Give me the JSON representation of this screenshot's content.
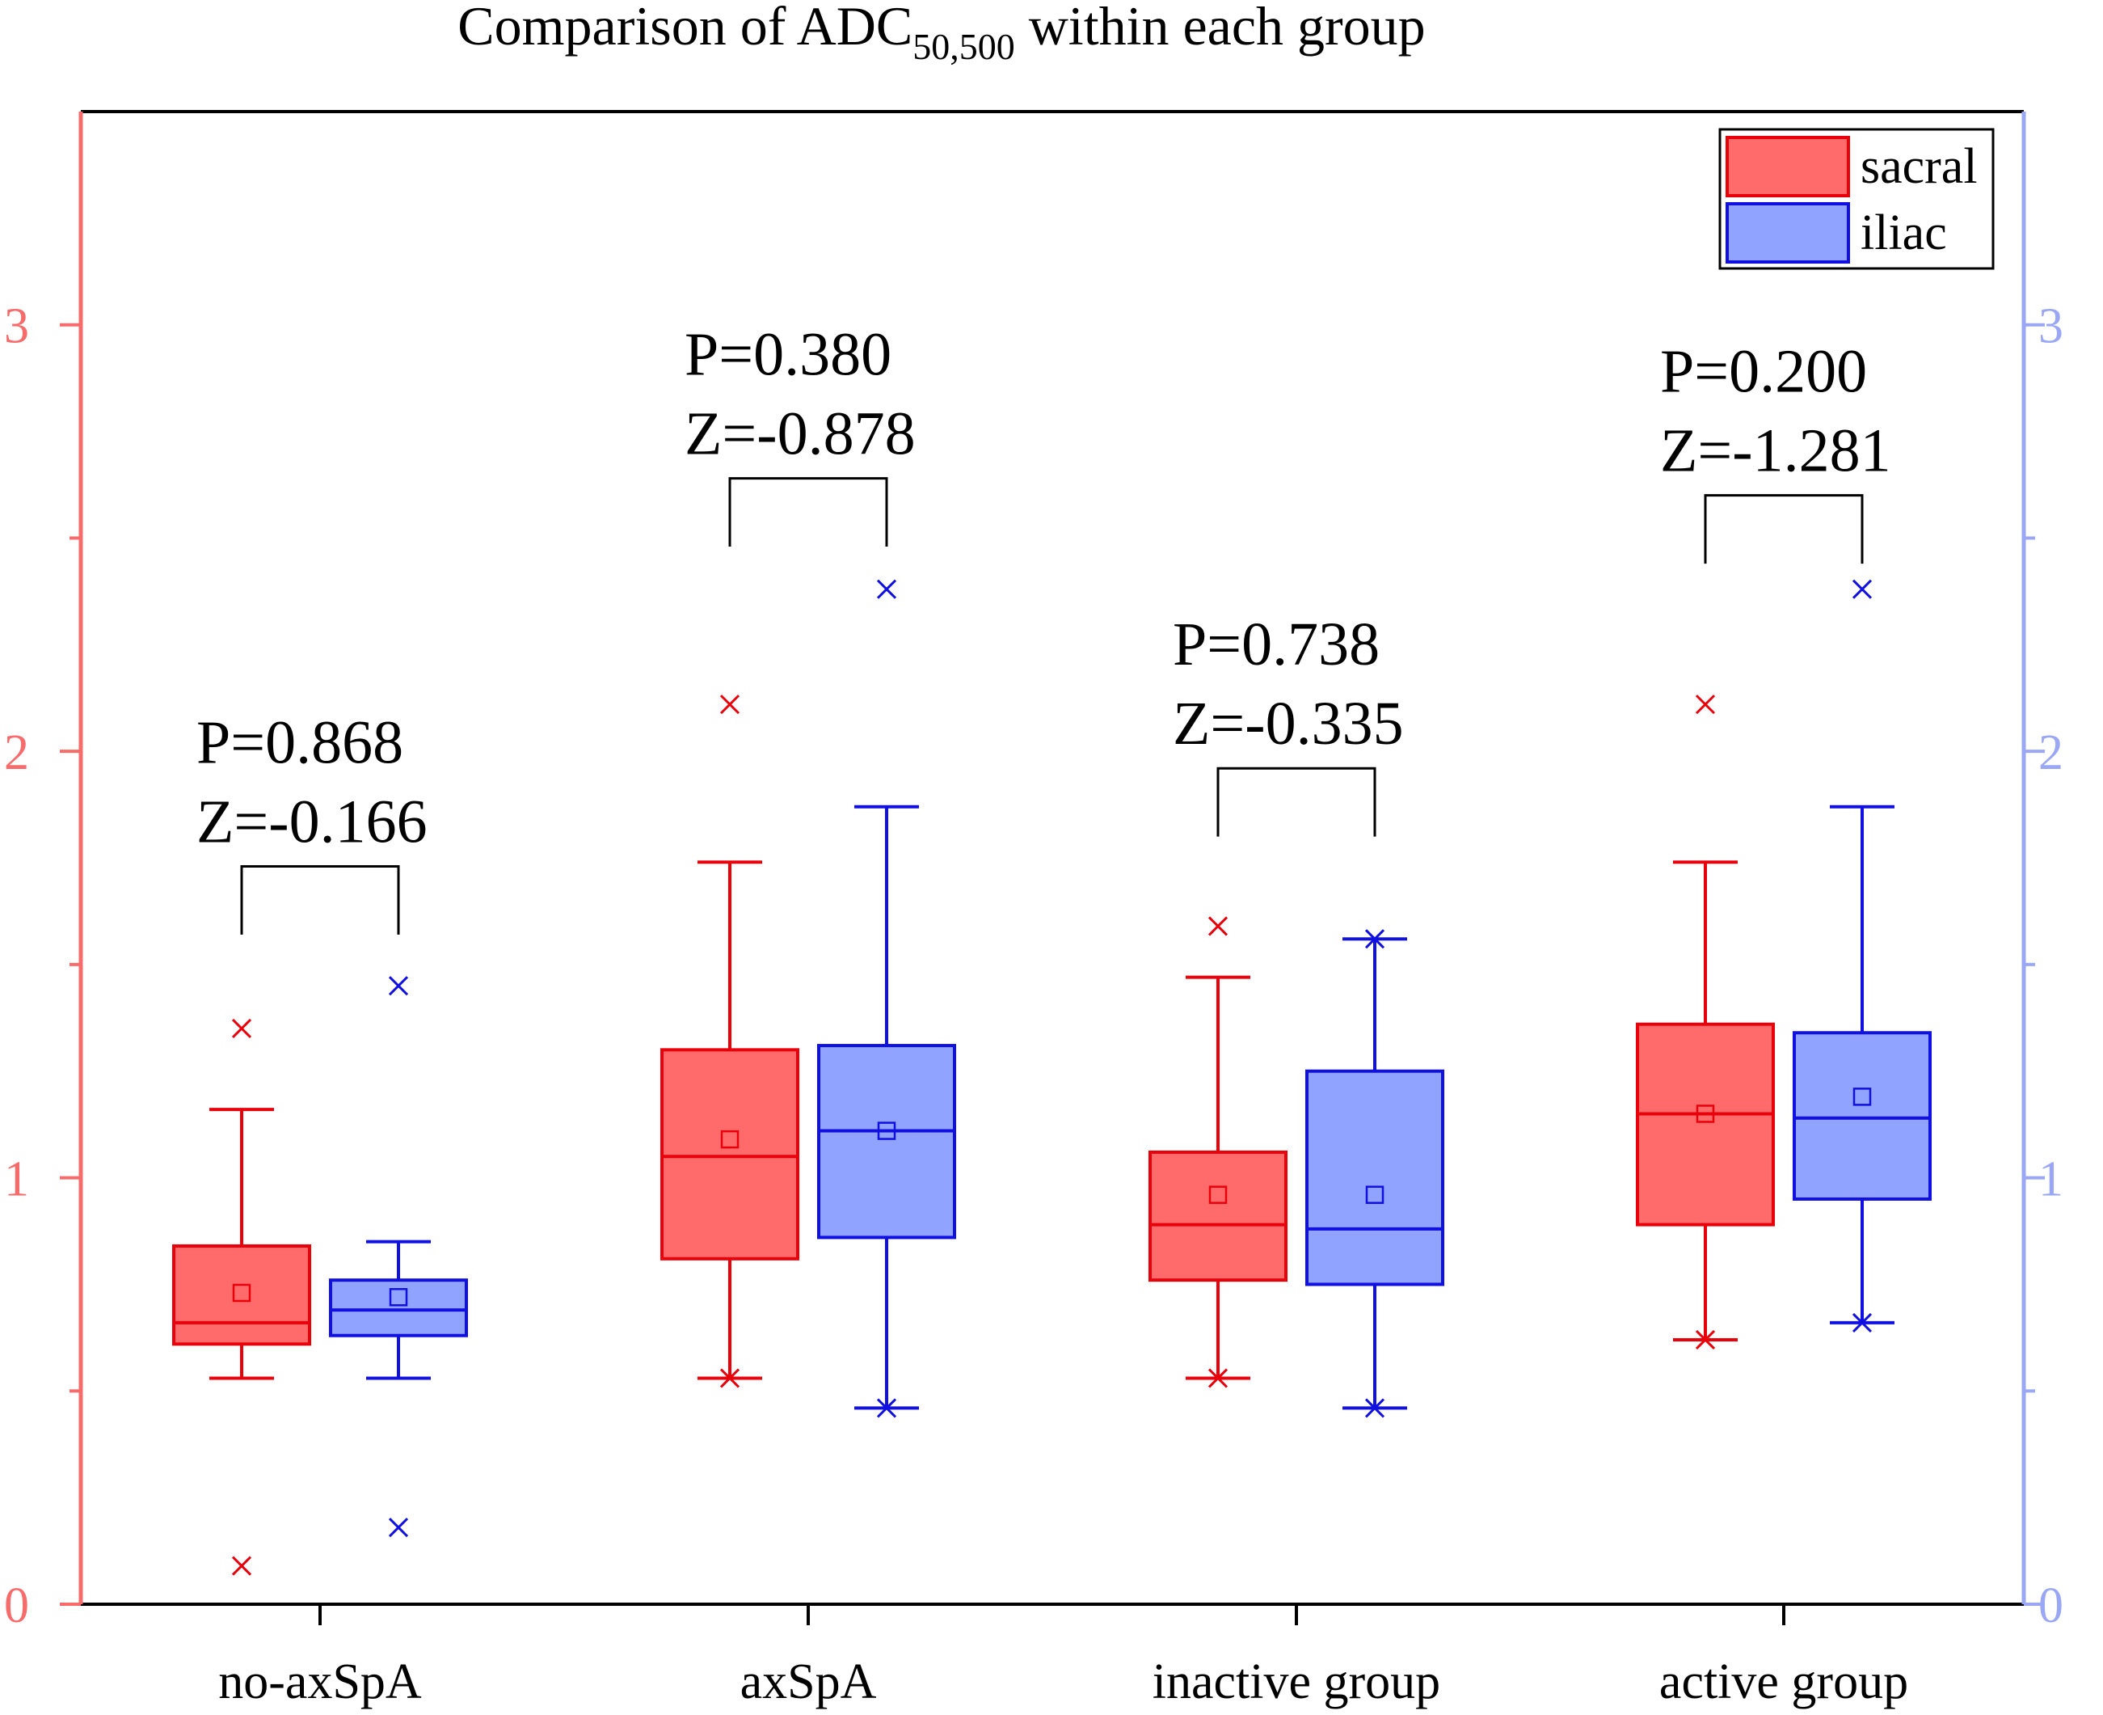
{
  "chart_data": {
    "type": "box",
    "title_main": "Comparison of ADC",
    "title_sub": "50,500",
    "title_rest": " within each group",
    "categories": [
      "no-axSpA",
      "axSpA",
      "inactive group",
      "active group"
    ],
    "ylim": [
      0,
      3.5
    ],
    "yticks_major": [
      0,
      1,
      2,
      3
    ],
    "yticks_minor": [
      0.5,
      1.5,
      2.5
    ],
    "ytick_labels_left": [
      "0",
      "1",
      "2",
      "3"
    ],
    "ytick_labels_right": [
      "0",
      "1",
      "2",
      "3"
    ],
    "legend": {
      "position": "top-right",
      "entries": [
        {
          "label": "sacral",
          "series": "sacral"
        },
        {
          "label": "iliac",
          "series": "iliac"
        }
      ]
    },
    "colors": {
      "sacral_fill": "#ff6b6b",
      "sacral_line": "#e8000b",
      "iliac_fill": "#8fa3ff",
      "iliac_line": "#1010e0",
      "left_axis": "#f76b6b",
      "right_axis": "#9aa7f5",
      "text": "#000000"
    },
    "series": [
      {
        "name": "sacral",
        "boxes": [
          {
            "whisker_low": 0.53,
            "q1": 0.61,
            "median": 0.66,
            "q3": 0.84,
            "whisker_high": 1.16,
            "mean": 0.73,
            "outliers": [
              1.35,
              0.09
            ],
            "cap_low": "line",
            "cap_high": "line"
          },
          {
            "whisker_low": 0.53,
            "q1": 0.81,
            "median": 1.05,
            "q3": 1.3,
            "whisker_high": 1.74,
            "mean": 1.09,
            "outliers": [
              2.11
            ],
            "cap_low": "x",
            "cap_high": "line"
          },
          {
            "whisker_low": 0.53,
            "q1": 0.76,
            "median": 0.89,
            "q3": 1.06,
            "whisker_high": 1.47,
            "mean": 0.96,
            "outliers": [
              1.59
            ],
            "cap_low": "x",
            "cap_high": "line"
          },
          {
            "whisker_low": 0.62,
            "q1": 0.89,
            "median": 1.15,
            "q3": 1.36,
            "whisker_high": 1.74,
            "mean": 1.15,
            "outliers": [
              2.11
            ],
            "cap_low": "x",
            "cap_high": "line"
          }
        ]
      },
      {
        "name": "iliac",
        "boxes": [
          {
            "whisker_low": 0.53,
            "q1": 0.63,
            "median": 0.69,
            "q3": 0.76,
            "whisker_high": 0.85,
            "mean": 0.72,
            "outliers": [
              1.45,
              0.18
            ],
            "cap_low": "line",
            "cap_high": "line"
          },
          {
            "whisker_low": 0.46,
            "q1": 0.86,
            "median": 1.11,
            "q3": 1.31,
            "whisker_high": 1.87,
            "mean": 1.11,
            "outliers": [
              2.38
            ],
            "cap_low": "x",
            "cap_high": "line"
          },
          {
            "whisker_low": 0.46,
            "q1": 0.75,
            "median": 0.88,
            "q3": 1.25,
            "whisker_high": 1.56,
            "mean": 0.96,
            "outliers": [],
            "cap_low": "x",
            "cap_high": "x"
          },
          {
            "whisker_low": 0.66,
            "q1": 0.95,
            "median": 1.14,
            "q3": 1.34,
            "whisker_high": 1.87,
            "mean": 1.19,
            "outliers": [
              2.38
            ],
            "cap_low": "x",
            "cap_high": "line"
          }
        ]
      }
    ],
    "annotations": [
      {
        "group": 0,
        "p": "P=0.868",
        "z": "Z=-0.166",
        "bracket_y": 1.73,
        "bracket_drop": 1.57
      },
      {
        "group": 1,
        "p": "P=0.380",
        "z": "Z=-0.878",
        "bracket_y": 2.64,
        "bracket_drop": 2.48
      },
      {
        "group": 2,
        "p": "P=0.738",
        "z": "Z=-0.335",
        "bracket_y": 1.96,
        "bracket_drop": 1.8
      },
      {
        "group": 3,
        "p": "P=0.200",
        "z": "Z=-1.281",
        "bracket_y": 2.6,
        "bracket_drop": 2.44
      }
    ]
  }
}
